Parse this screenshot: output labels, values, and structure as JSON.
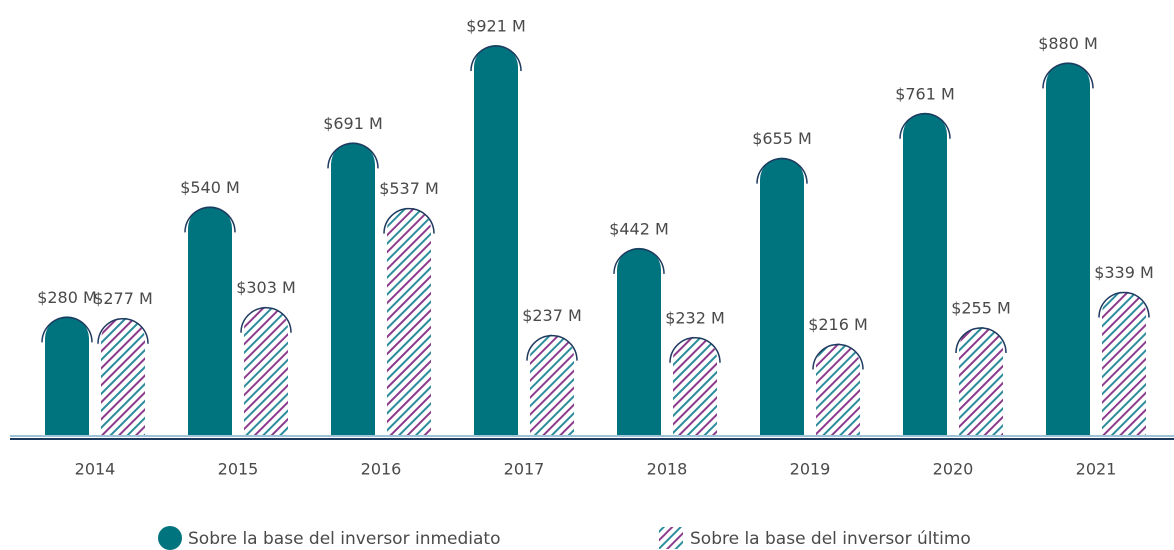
{
  "chart_data": {
    "type": "bar",
    "categories": [
      "2014",
      "2015",
      "2016",
      "2017",
      "2018",
      "2019",
      "2020",
      "2021"
    ],
    "series": [
      {
        "name": "Sobre la base del inversor inmediato",
        "color": "#00747e",
        "values": [
          280,
          540,
          691,
          921,
          442,
          655,
          761,
          880
        ],
        "value_labels": [
          "$280 M",
          "$540 M",
          "$691 M",
          "$921 M",
          "$442 M",
          "$655 M",
          "$761 M",
          "$880 M"
        ]
      },
      {
        "name": "Sobre la base del inversor último",
        "color": "#8c3b8c",
        "pattern": "hatch",
        "hatch_color": "#2b8c9c",
        "values": [
          277,
          303,
          537,
          237,
          232,
          216,
          255,
          339
        ],
        "value_labels": [
          "$277 M",
          "$303 M",
          "$537 M",
          "$237 M",
          "$232 M",
          "$216 M",
          "$255 M",
          "$339 M"
        ]
      }
    ]
  }
}
